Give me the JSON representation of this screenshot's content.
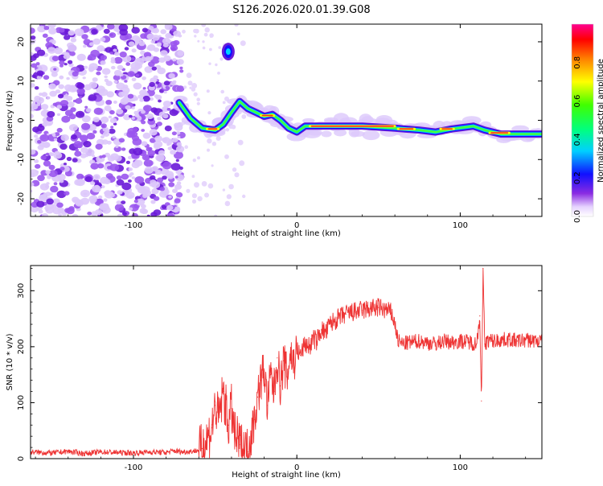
{
  "title": "S126.2026.020.01.39.G08",
  "chart_data": [
    {
      "type": "heatmap",
      "name": "spectrogram",
      "xlabel": "Height of straight line (km)",
      "ylabel": "Frequency (Hz)",
      "xlim": [
        -163,
        150
      ],
      "ylim": [
        -24.5,
        24.5
      ],
      "xticks": [
        -100,
        0,
        100
      ],
      "yticks": [
        -20,
        -10,
        0,
        10,
        20
      ],
      "colorbar": {
        "label": "Normalized spectral amplitude",
        "range": [
          0,
          1
        ],
        "ticks": [
          0.0,
          0.2,
          0.4,
          0.6,
          0.8
        ]
      },
      "ridge_centerline": [
        {
          "x": -72,
          "y": 4.5
        },
        {
          "x": -65,
          "y": 0.5
        },
        {
          "x": -58,
          "y": -2.0
        },
        {
          "x": -50,
          "y": -2.5
        },
        {
          "x": -45,
          "y": -1.0
        },
        {
          "x": -40,
          "y": 2.0
        },
        {
          "x": -35,
          "y": 4.8
        },
        {
          "x": -30,
          "y": 3.0
        },
        {
          "x": -25,
          "y": 2.0
        },
        {
          "x": -20,
          "y": 1.0
        },
        {
          "x": -15,
          "y": 1.5
        },
        {
          "x": -10,
          "y": 0.0
        },
        {
          "x": -5,
          "y": -2.0
        },
        {
          "x": 0,
          "y": -3.0
        },
        {
          "x": 5,
          "y": -1.5
        },
        {
          "x": 10,
          "y": -1.5
        },
        {
          "x": 40,
          "y": -1.5
        },
        {
          "x": 60,
          "y": -2.0
        },
        {
          "x": 75,
          "y": -2.5
        },
        {
          "x": 85,
          "y": -3.0
        },
        {
          "x": 95,
          "y": -2.2
        },
        {
          "x": 108,
          "y": -1.5
        },
        {
          "x": 115,
          "y": -2.5
        },
        {
          "x": 125,
          "y": -3.5
        },
        {
          "x": 150,
          "y": -3.5
        }
      ],
      "isolated_blob": {
        "x": -42,
        "y": 17.5
      }
    },
    {
      "type": "line",
      "name": "snr",
      "xlabel": "Height of straight line (km)",
      "ylabel": "SNR (10 * v/v)",
      "xlim": [
        -163,
        150
      ],
      "ylim": [
        0,
        345
      ],
      "xticks": [
        -100,
        0,
        100
      ],
      "yticks": [
        0,
        100,
        200,
        300
      ],
      "color": "#ee3333",
      "x": [
        -163,
        -150,
        -140,
        -130,
        -120,
        -110,
        -100,
        -90,
        -80,
        -75,
        -70,
        -65,
        -60,
        -58,
        -55,
        -52,
        -50,
        -48,
        -45,
        -42,
        -40,
        -38,
        -35,
        -32,
        -30,
        -28,
        -26,
        -24,
        -22,
        -20,
        -18,
        -16,
        -14,
        -12,
        -10,
        -8,
        -6,
        -4,
        -2,
        0,
        2,
        5,
        8,
        10,
        12,
        15,
        18,
        20,
        25,
        30,
        35,
        40,
        45,
        50,
        55,
        58,
        60,
        62,
        65,
        70,
        75,
        80,
        85,
        90,
        95,
        100,
        105,
        110,
        112,
        113,
        114,
        115,
        116,
        118,
        120,
        125,
        130,
        135,
        140,
        145,
        150
      ],
      "values": [
        12,
        10,
        13,
        9,
        12,
        11,
        10,
        12,
        11,
        14,
        12,
        13,
        15,
        18,
        35,
        55,
        95,
        70,
        120,
        60,
        90,
        40,
        25,
        15,
        12,
        40,
        70,
        110,
        140,
        160,
        95,
        150,
        120,
        180,
        130,
        175,
        145,
        190,
        170,
        195,
        185,
        205,
        200,
        215,
        210,
        230,
        225,
        240,
        250,
        258,
        262,
        265,
        268,
        270,
        265,
        260,
        240,
        210,
        205,
        208,
        210,
        207,
        205,
        210,
        208,
        210,
        209,
        205,
        255,
        103,
        340,
        205,
        208,
        212,
        210,
        212,
        213,
        210,
        212,
        211,
        210
      ]
    }
  ]
}
